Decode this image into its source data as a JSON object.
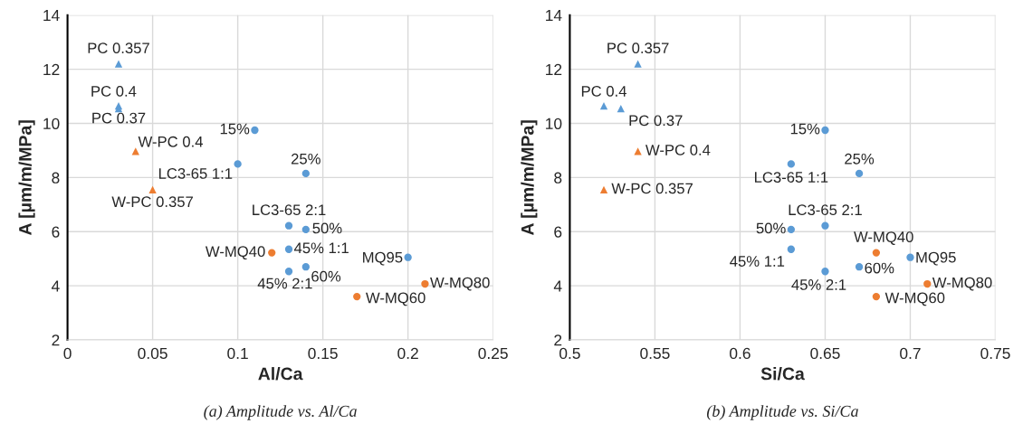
{
  "chart_data": [
    {
      "type": "scatter",
      "xlabel": "Al/Ca",
      "ylabel": "A [µm/m/MPa]",
      "xlim": [
        0,
        0.25
      ],
      "xticks": [
        0,
        0.05,
        0.1,
        0.15,
        0.2,
        0.25
      ],
      "ylim": [
        2,
        14
      ],
      "yticks": [
        2,
        4,
        6,
        8,
        10,
        12,
        14
      ],
      "grid": true,
      "legend": false,
      "series": [
        {
          "color": "#5b9bd5",
          "marker": "triangle",
          "x": [
            0.03,
            0.03,
            0.03
          ],
          "values": [
            12.2,
            10.65,
            10.55
          ]
        },
        {
          "color": "#ed7d31",
          "marker": "triangle",
          "x": [
            0.04,
            0.05
          ],
          "values": [
            8.97,
            7.55
          ]
        },
        {
          "color": "#5b9bd5",
          "marker": "circle",
          "x": [
            0.11,
            0.1,
            0.14,
            0.13,
            0.14,
            0.13,
            0.2,
            0.14,
            0.13
          ],
          "values": [
            9.75,
            8.5,
            8.15,
            6.22,
            6.08,
            5.35,
            5.05,
            4.7,
            4.53
          ]
        },
        {
          "color": "#ed7d31",
          "marker": "circle",
          "x": [
            0.12,
            0.21,
            0.17
          ],
          "values": [
            5.22,
            4.07,
            3.6
          ]
        }
      ],
      "annotations": [
        {
          "text": "PC 0.357",
          "x": 0.03,
          "y": 12.2
        },
        {
          "text": "PC 0.4",
          "x": 0.03,
          "y": 10.65
        },
        {
          "text": "PC 0.37",
          "x": 0.03,
          "y": 10.55
        },
        {
          "text": "W-PC 0.4",
          "x": 0.04,
          "y": 8.97
        },
        {
          "text": "W-PC 0.357",
          "x": 0.05,
          "y": 7.55
        },
        {
          "text": "15%",
          "x": 0.11,
          "y": 9.75
        },
        {
          "text": "LC3-65 1:1",
          "x": 0.1,
          "y": 8.5
        },
        {
          "text": "25%",
          "x": 0.14,
          "y": 8.15
        },
        {
          "text": "LC3-65 2:1",
          "x": 0.13,
          "y": 6.22
        },
        {
          "text": "50%",
          "x": 0.14,
          "y": 6.08
        },
        {
          "text": "45% 1:1",
          "x": 0.13,
          "y": 5.35
        },
        {
          "text": "W-MQ40",
          "x": 0.12,
          "y": 5.22
        },
        {
          "text": "MQ95",
          "x": 0.2,
          "y": 5.05
        },
        {
          "text": "60%",
          "x": 0.14,
          "y": 4.7
        },
        {
          "text": "45% 2:1",
          "x": 0.13,
          "y": 4.53
        },
        {
          "text": "W-MQ80",
          "x": 0.21,
          "y": 4.07
        },
        {
          "text": "W-MQ60",
          "x": 0.17,
          "y": 3.6
        },
        "(a) Amplitude vs. Al/Ca"
      ]
    },
    {
      "type": "scatter",
      "xlabel": "Si/Ca",
      "ylabel": "A [µm/m/MPa]",
      "xlim": [
        0.5,
        0.75
      ],
      "xticks": [
        0.5,
        0.55,
        0.6,
        0.65,
        0.7,
        0.75
      ],
      "ylim": [
        2,
        14
      ],
      "yticks": [
        2,
        4,
        6,
        8,
        10,
        12,
        14
      ],
      "grid": true,
      "legend": false,
      "series": [
        {
          "color": "#5b9bd5",
          "marker": "triangle",
          "x": [
            0.54,
            0.52,
            0.53
          ],
          "values": [
            12.2,
            10.65,
            10.55
          ]
        },
        {
          "color": "#ed7d31",
          "marker": "triangle",
          "x": [
            0.54,
            0.52
          ],
          "values": [
            8.97,
            7.55
          ]
        },
        {
          "color": "#5b9bd5",
          "marker": "circle",
          "x": [
            0.65,
            0.63,
            0.67,
            0.65,
            0.63,
            0.63,
            0.7,
            0.67,
            0.65
          ],
          "values": [
            9.75,
            8.5,
            8.15,
            6.22,
            6.08,
            5.35,
            5.05,
            4.7,
            4.53
          ]
        },
        {
          "color": "#ed7d31",
          "marker": "circle",
          "x": [
            0.68,
            0.71,
            0.68
          ],
          "values": [
            5.22,
            4.07,
            3.6
          ]
        }
      ],
      "annotations": [
        {
          "text": "PC 0.357",
          "x": 0.54,
          "y": 12.2
        },
        {
          "text": "PC 0.4",
          "x": 0.52,
          "y": 10.65
        },
        {
          "text": "PC 0.37",
          "x": 0.53,
          "y": 10.55
        },
        {
          "text": "W-PC 0.4",
          "x": 0.54,
          "y": 8.97
        },
        {
          "text": "W-PC 0.357",
          "x": 0.52,
          "y": 7.55
        },
        {
          "text": "15%",
          "x": 0.65,
          "y": 9.75
        },
        {
          "text": "LC3-65 1:1",
          "x": 0.63,
          "y": 8.5
        },
        {
          "text": "25%",
          "x": 0.67,
          "y": 8.15
        },
        {
          "text": "LC3-65 2:1",
          "x": 0.65,
          "y": 6.22
        },
        {
          "text": "50%",
          "x": 0.63,
          "y": 6.08
        },
        {
          "text": "45% 1:1",
          "x": 0.63,
          "y": 5.35
        },
        {
          "text": "W-MQ40",
          "x": 0.68,
          "y": 5.22
        },
        {
          "text": "MQ95",
          "x": 0.7,
          "y": 5.05
        },
        {
          "text": "60%",
          "x": 0.67,
          "y": 4.7
        },
        {
          "text": "45% 2:1",
          "x": 0.65,
          "y": 4.53
        },
        {
          "text": "W-MQ80",
          "x": 0.71,
          "y": 4.07
        },
        {
          "text": "W-MQ60",
          "x": 0.68,
          "y": 3.6
        },
        "(b) Amplitude vs. Si/Ca"
      ]
    }
  ]
}
